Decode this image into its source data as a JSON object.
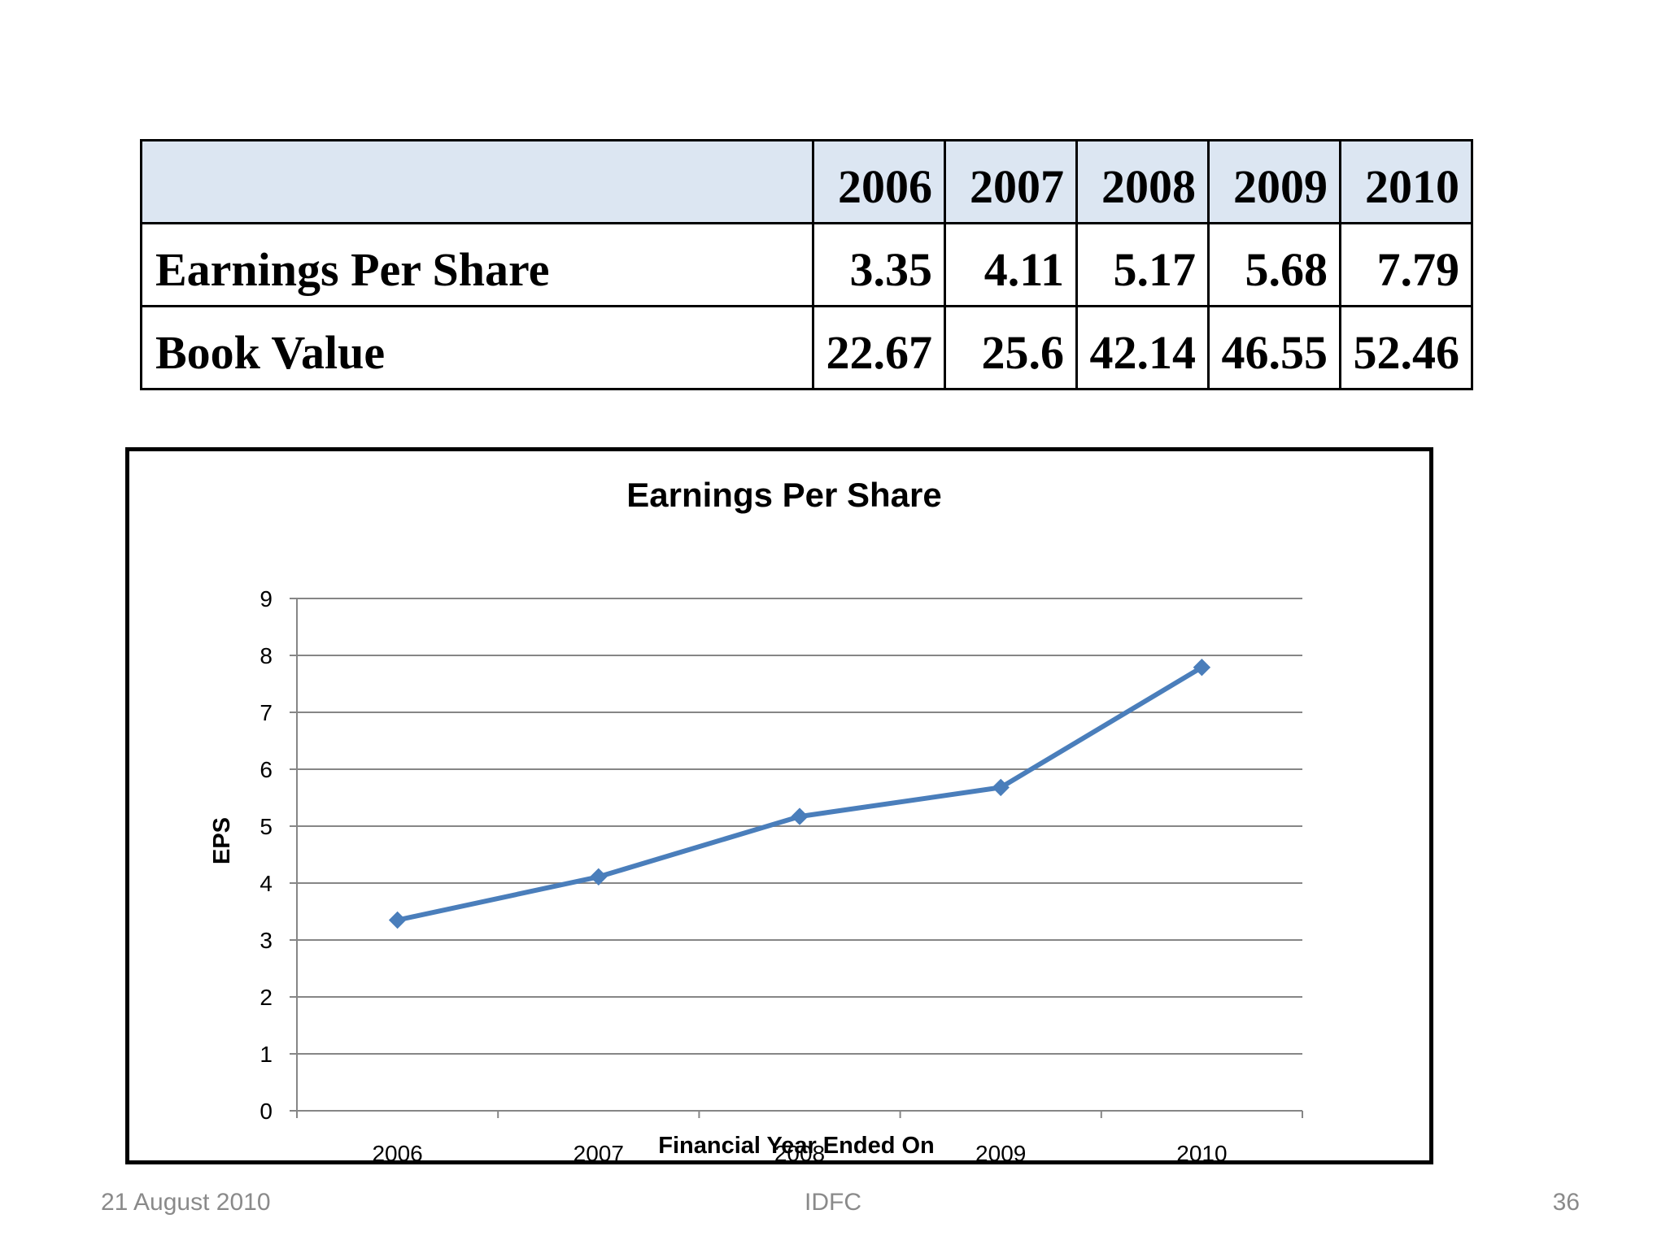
{
  "table": {
    "header_blank": "",
    "years": [
      "2006",
      "2007",
      "2008",
      "2009",
      "2010"
    ],
    "rows": [
      {
        "label": "Earnings Per Share",
        "values": [
          "3.35",
          "4.11",
          "5.17",
          "5.68",
          "7.79"
        ]
      },
      {
        "label": "Book Value",
        "values": [
          "22.67",
          "25.6",
          "42.14",
          "46.55",
          "52.46"
        ]
      }
    ]
  },
  "chart_data": {
    "type": "line",
    "title": "Earnings Per Share",
    "xlabel": "Financial Year Ended On",
    "ylabel": "EPS",
    "categories": [
      "2006",
      "2007",
      "2008",
      "2009",
      "2010"
    ],
    "series": [
      {
        "name": "Earnings Per Share",
        "values": [
          3.35,
          4.11,
          5.17,
          5.68,
          7.79
        ]
      }
    ],
    "ylim": [
      0,
      9
    ],
    "yticks": [
      0,
      1,
      2,
      3,
      4,
      5,
      6,
      7,
      8,
      9
    ],
    "grid": true,
    "legend": "none",
    "line_color": "#4a7ebb",
    "grid_color": "#868686"
  },
  "footer": {
    "date": "21 August 2010",
    "org": "IDFC",
    "page": "36"
  }
}
